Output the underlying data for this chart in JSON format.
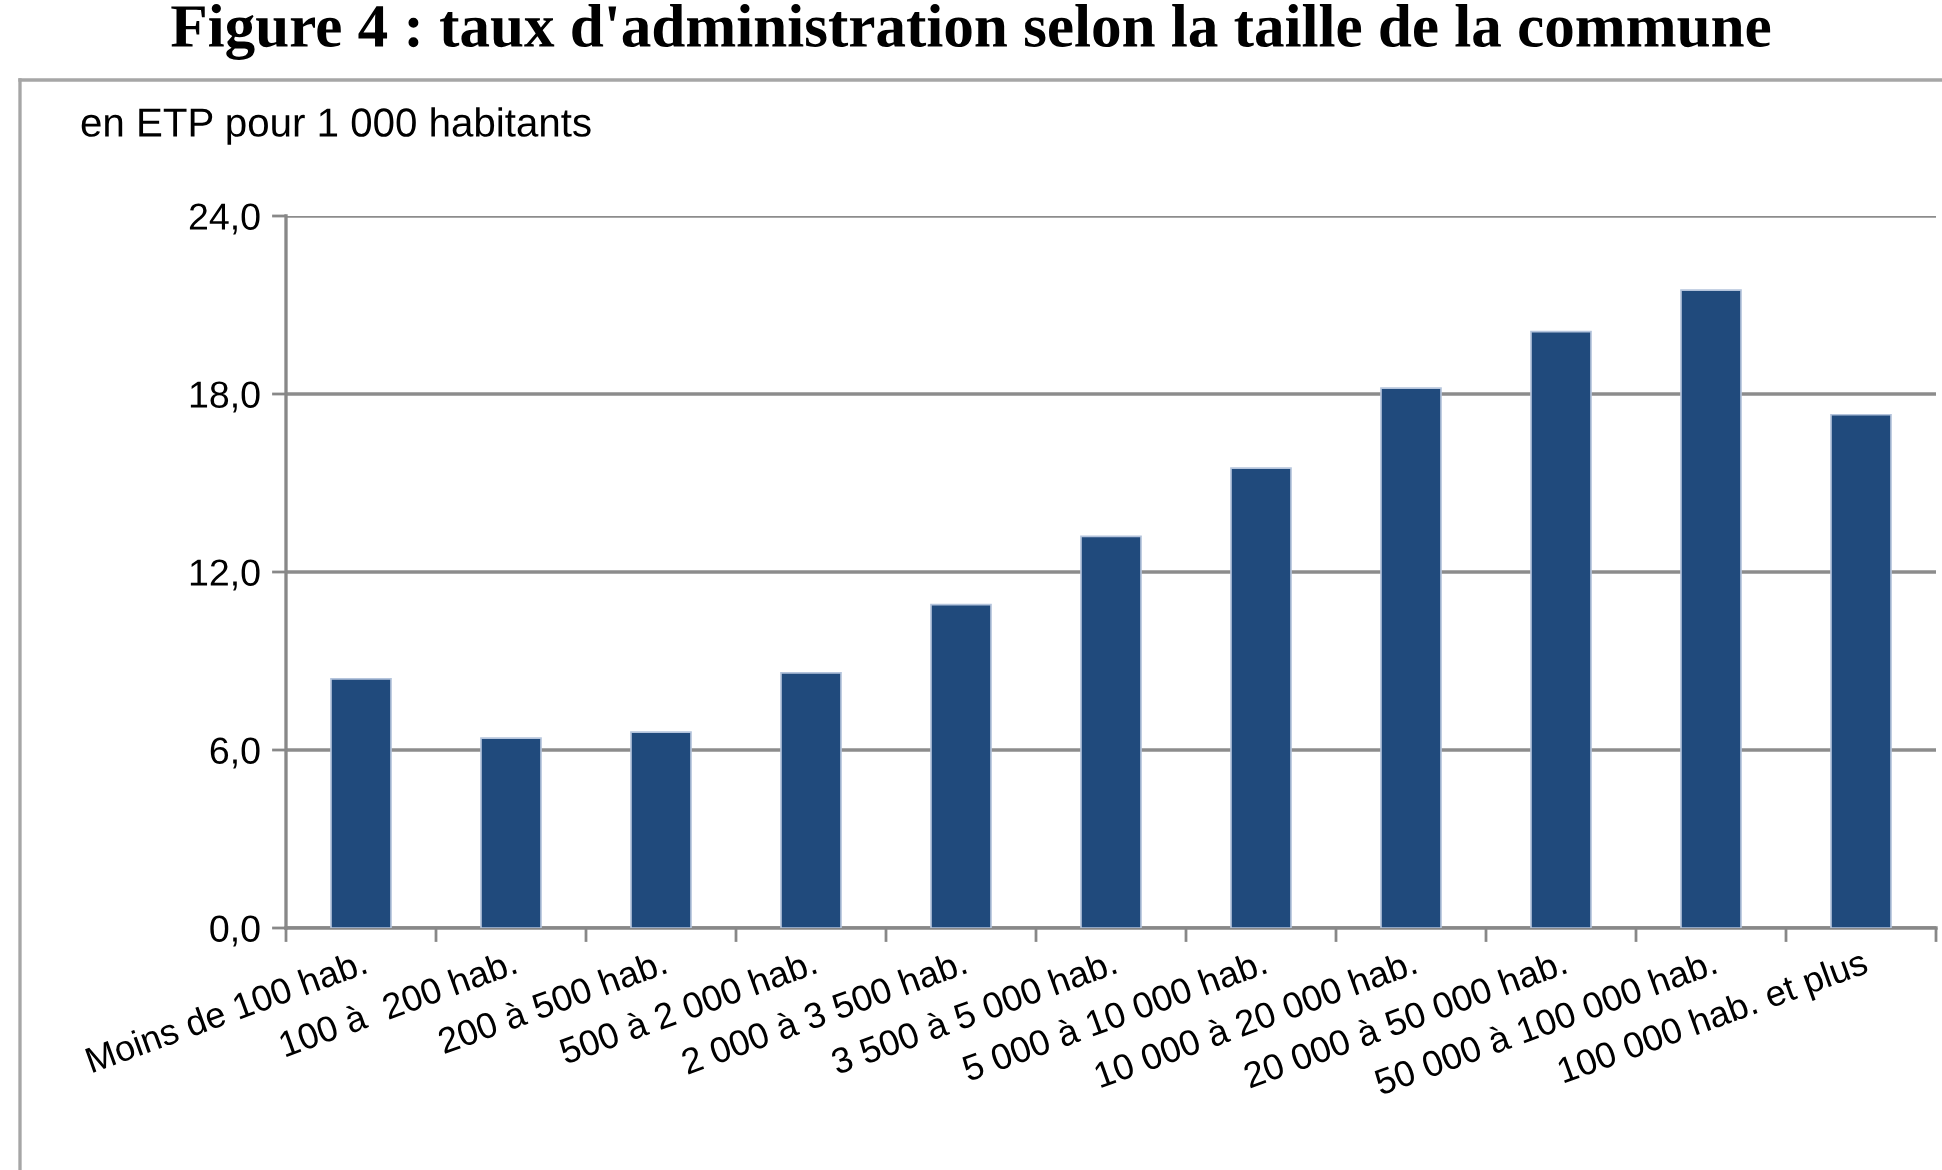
{
  "chart_data": {
    "type": "bar",
    "title": "Figure 4 : taux d'administration selon la taille de la commune",
    "ylabel": "en ETP pour 1 000 habitants",
    "categories": [
      "Moins de 100 hab.",
      "100 à  200 hab.",
      "200 à 500 hab.",
      "500 à 2 000 hab.",
      "2 000 à 3 500 hab.",
      "3 500 à 5 000 hab.",
      "5 000 à 10 000 hab.",
      "10 000 à 20 000 hab.",
      "20 000 à 50 000 hab.",
      "50 000 à 100 000 hab.",
      "100 000 hab. et plus"
    ],
    "values": [
      8.4,
      6.4,
      6.6,
      8.6,
      10.9,
      13.2,
      15.5,
      18.2,
      20.1,
      21.5,
      17.3
    ],
    "color": "#204a7c",
    "ylim": [
      0,
      24
    ],
    "yticks": [
      {
        "value": 0,
        "label": "0,0"
      },
      {
        "value": 6,
        "label": "6,0"
      },
      {
        "value": 12,
        "label": "12,0"
      },
      {
        "value": 18,
        "label": "18,0"
      },
      {
        "value": 24,
        "label": "24,0"
      }
    ],
    "grid": "y"
  }
}
